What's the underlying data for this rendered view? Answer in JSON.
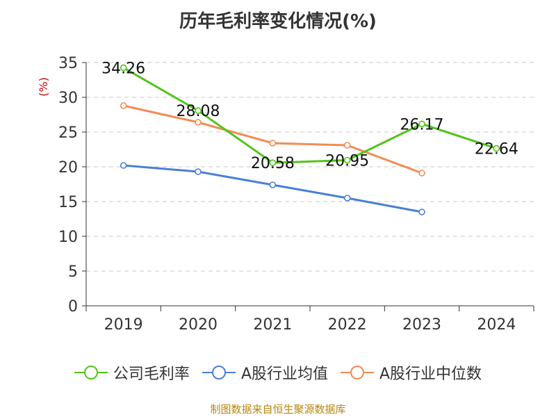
{
  "chart_data": {
    "type": "line",
    "title": "历年毛利率变化情况(%)",
    "ylabel": "(%)",
    "xlabel": "",
    "categories": [
      "2019",
      "2020",
      "2021",
      "2022",
      "2023",
      "2024"
    ],
    "ylim": [
      0,
      35
    ],
    "yticks": [
      0,
      5,
      10,
      15,
      20,
      25,
      30,
      35
    ],
    "grid": "horizontal-dashed",
    "legend_position": "bottom",
    "series": [
      {
        "name": "公司毛利率",
        "color": "#52c41a",
        "values": [
          34.26,
          28.08,
          20.58,
          20.95,
          26.17,
          22.64
        ],
        "labels": [
          "34.26",
          "28.08",
          "20.58",
          "20.95",
          "26.17",
          "22.64"
        ]
      },
      {
        "name": "A股行业均值",
        "color": "#4a7fd6",
        "values": [
          20.2,
          19.3,
          17.4,
          15.5,
          13.5,
          null
        ]
      },
      {
        "name": "A股行业中位数",
        "color": "#f28b54",
        "values": [
          28.8,
          26.4,
          23.4,
          23.1,
          19.1,
          null
        ]
      }
    ]
  },
  "source": "制图数据来自恒生聚源数据库"
}
